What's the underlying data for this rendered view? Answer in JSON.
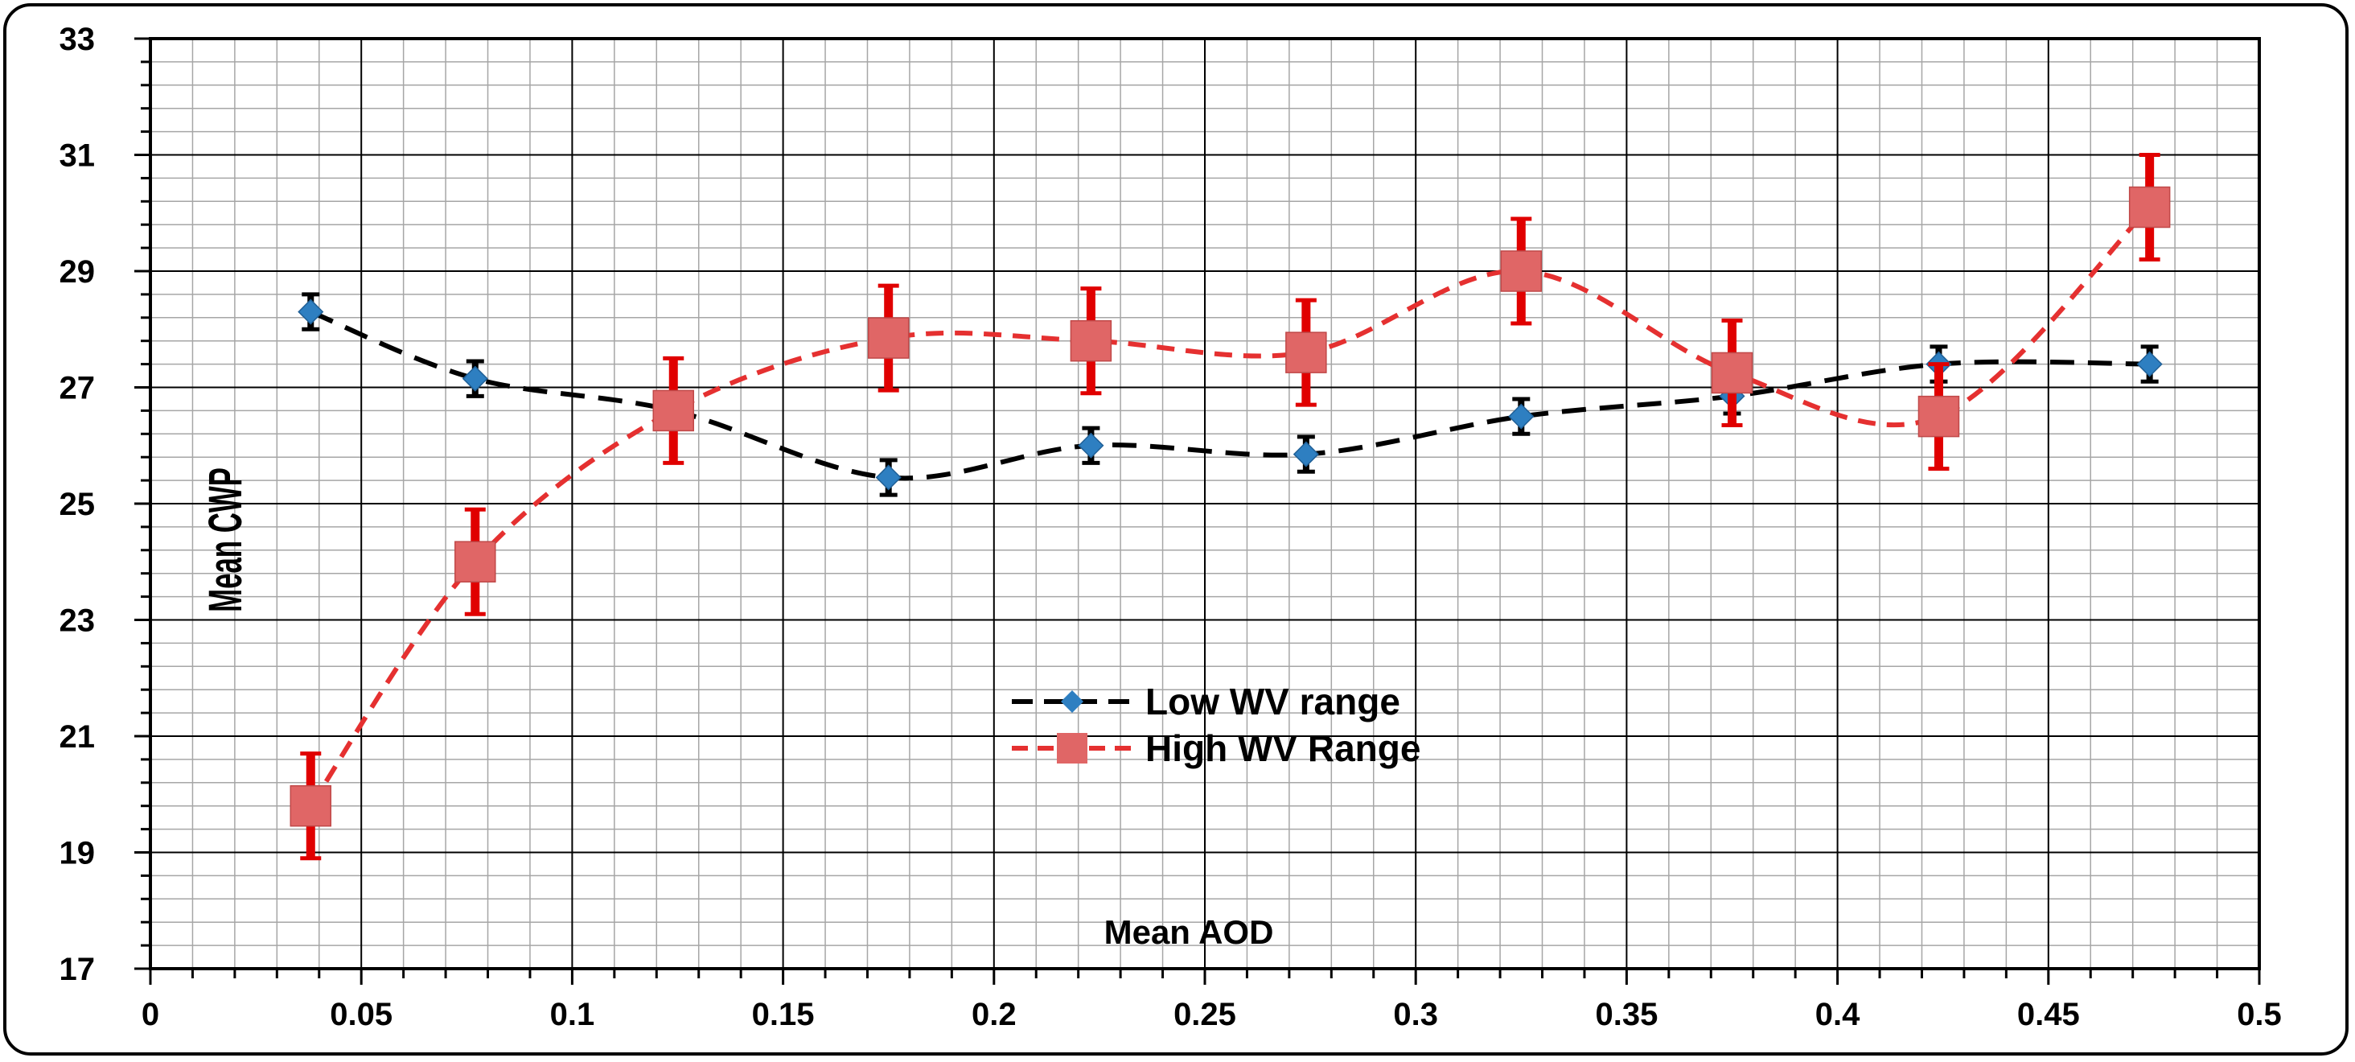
{
  "chart_data": {
    "type": "line",
    "title": "",
    "xlabel": "Mean AOD",
    "ylabel": "Mean CWP",
    "xlim": [
      0,
      0.5
    ],
    "ylim": [
      17,
      33
    ],
    "x_major_step": 0.05,
    "y_major_step": 2,
    "x_ticks": [
      "0",
      "0.05",
      "0.1",
      "0.15",
      "0.2",
      "0.25",
      "0.3",
      "0.35",
      "0.4",
      "0.45",
      "0.5"
    ],
    "y_ticks": [
      "17",
      "19",
      "21",
      "23",
      "25",
      "27",
      "29",
      "31",
      "33"
    ],
    "grid": true,
    "minor_grid": true,
    "legend_position": "center",
    "series": [
      {
        "name": "Low WV range",
        "color": "#000000",
        "marker": "diamond",
        "marker_color": "#2e7fc1",
        "x": [
          0.038,
          0.077,
          0.124,
          0.175,
          0.223,
          0.274,
          0.325,
          0.375,
          0.424,
          0.474
        ],
        "y": [
          28.3,
          27.15,
          26.6,
          25.45,
          26.0,
          25.85,
          26.5,
          26.85,
          27.4,
          27.4
        ],
        "error": [
          0.3,
          0.3,
          0.3,
          0.3,
          0.3,
          0.3,
          0.3,
          0.3,
          0.3,
          0.3
        ]
      },
      {
        "name": "High WV Range",
        "color": "#e53030",
        "marker": "square",
        "marker_color": "#e06666",
        "x": [
          0.038,
          0.077,
          0.124,
          0.175,
          0.223,
          0.274,
          0.325,
          0.375,
          0.424,
          0.474
        ],
        "y": [
          19.8,
          24.0,
          26.6,
          27.85,
          27.8,
          27.6,
          29.0,
          27.25,
          26.5,
          30.1
        ],
        "error": [
          0.9,
          0.9,
          0.9,
          0.9,
          0.9,
          0.9,
          0.9,
          0.9,
          0.9,
          0.9
        ]
      }
    ]
  }
}
